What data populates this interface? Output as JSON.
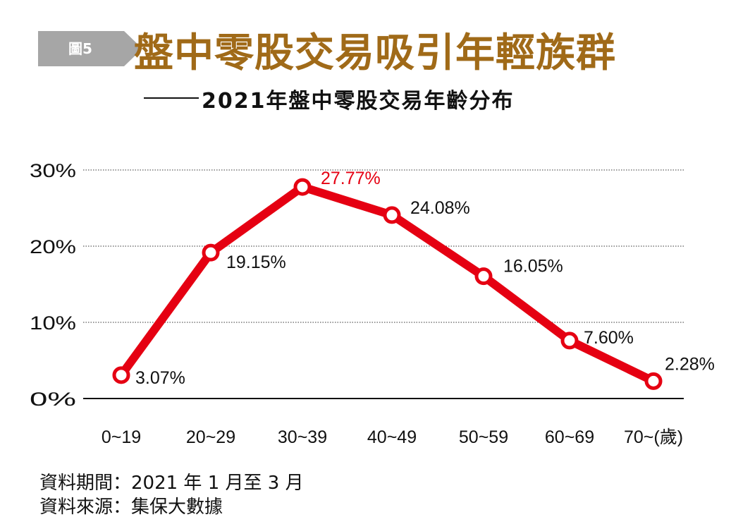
{
  "figure_badge": "圖5",
  "title": "盤中零股交易吸引年輕族群",
  "subtitle": "2021年盤中零股交易年齡分布",
  "colors": {
    "line": "#e50012",
    "highlight_label": "#e50012",
    "title": "#a06a18",
    "badge": "#a6a6a6"
  },
  "chart_data": {
    "type": "line",
    "categories": [
      "0~19",
      "20~29",
      "30~39",
      "40~49",
      "50~59",
      "60~69",
      "70~(歲)"
    ],
    "series": [
      {
        "values": [
          3.07,
          19.15,
          27.77,
          24.08,
          16.05,
          7.6,
          2.28
        ]
      }
    ],
    "data_labels": [
      "3.07%",
      "19.15%",
      "27.77%",
      "24.08%",
      "16.05%",
      "7.60%",
      "2.28%"
    ],
    "highlight_index": 2,
    "yticks": [
      "0%",
      "10%",
      "20%",
      "30%"
    ],
    "ytick_values": [
      0,
      10,
      20,
      30
    ],
    "ylim": [
      0,
      30
    ],
    "grid": true,
    "xlabel": "",
    "ylabel": ""
  },
  "footnotes": {
    "period": "資料期間：2021 年 1 月至 3 月",
    "source": "資料來源：集保大數據"
  }
}
